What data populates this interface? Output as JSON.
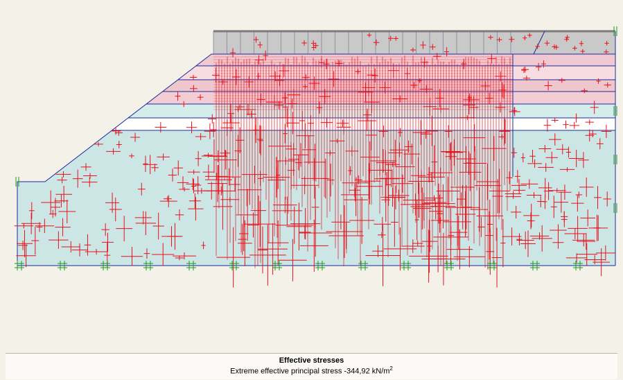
{
  "caption": {
    "title": "Effective stresses",
    "subtitle": "Extreme effective principal stress -344,92 kN/m",
    "superscript": "2"
  }
}
